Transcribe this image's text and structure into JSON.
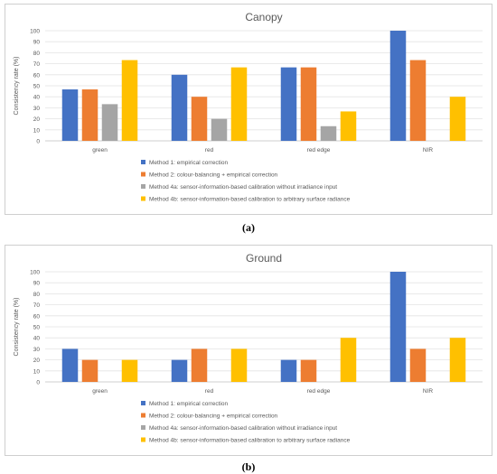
{
  "captions": [
    "(a)",
    "(b)"
  ],
  "chart_data": [
    {
      "type": "bar",
      "title": "Canopy",
      "ylabel": "Consistency rate (%)",
      "xlabel": "",
      "categories": [
        "green",
        "red",
        "red edge",
        "NIR"
      ],
      "ylim": [
        0,
        100
      ],
      "yticks": [
        0,
        10,
        20,
        30,
        40,
        50,
        60,
        70,
        80,
        90,
        100
      ],
      "grid": true,
      "legend_position": "bottom",
      "series": [
        {
          "name": "Method 1:   empirical correction",
          "color": "#4472c4",
          "values": [
            46.7,
            60,
            66.7,
            100
          ]
        },
        {
          "name": "Method 2:   colour-balancing + empirical correction",
          "color": "#ed7d31",
          "values": [
            46.7,
            40,
            66.7,
            73.3
          ]
        },
        {
          "name": "Method 4a: sensor-information-based calibration without irradiance input",
          "color": "#a5a5a5",
          "values": [
            33.3,
            20,
            13.3,
            0
          ]
        },
        {
          "name": "Method 4b: sensor-information-based calibration to arbitrary surface radiance",
          "color": "#ffc000",
          "values": [
            73.3,
            66.7,
            26.7,
            40
          ]
        }
      ]
    },
    {
      "type": "bar",
      "title": "Ground",
      "ylabel": "Consistency rate (%)",
      "xlabel": "",
      "categories": [
        "green",
        "red",
        "red edge",
        "NIR"
      ],
      "ylim": [
        0,
        100
      ],
      "yticks": [
        0,
        10,
        20,
        30,
        40,
        50,
        60,
        70,
        80,
        90,
        100
      ],
      "grid": true,
      "legend_position": "bottom",
      "series": [
        {
          "name": "Method 1:   empirical correction",
          "color": "#4472c4",
          "values": [
            30,
            20,
            20,
            100
          ]
        },
        {
          "name": "Method 2:   colour-balancing + empirical correction",
          "color": "#ed7d31",
          "values": [
            20,
            30,
            20,
            30
          ]
        },
        {
          "name": "Method 4a: sensor-information-based calibration without irradiance input",
          "color": "#a5a5a5",
          "values": [
            0,
            0,
            0,
            0
          ]
        },
        {
          "name": "Method 4b: sensor-information-based calibration to arbitrary surface radiance",
          "color": "#ffc000",
          "values": [
            20,
            30,
            40,
            40
          ]
        }
      ]
    }
  ]
}
